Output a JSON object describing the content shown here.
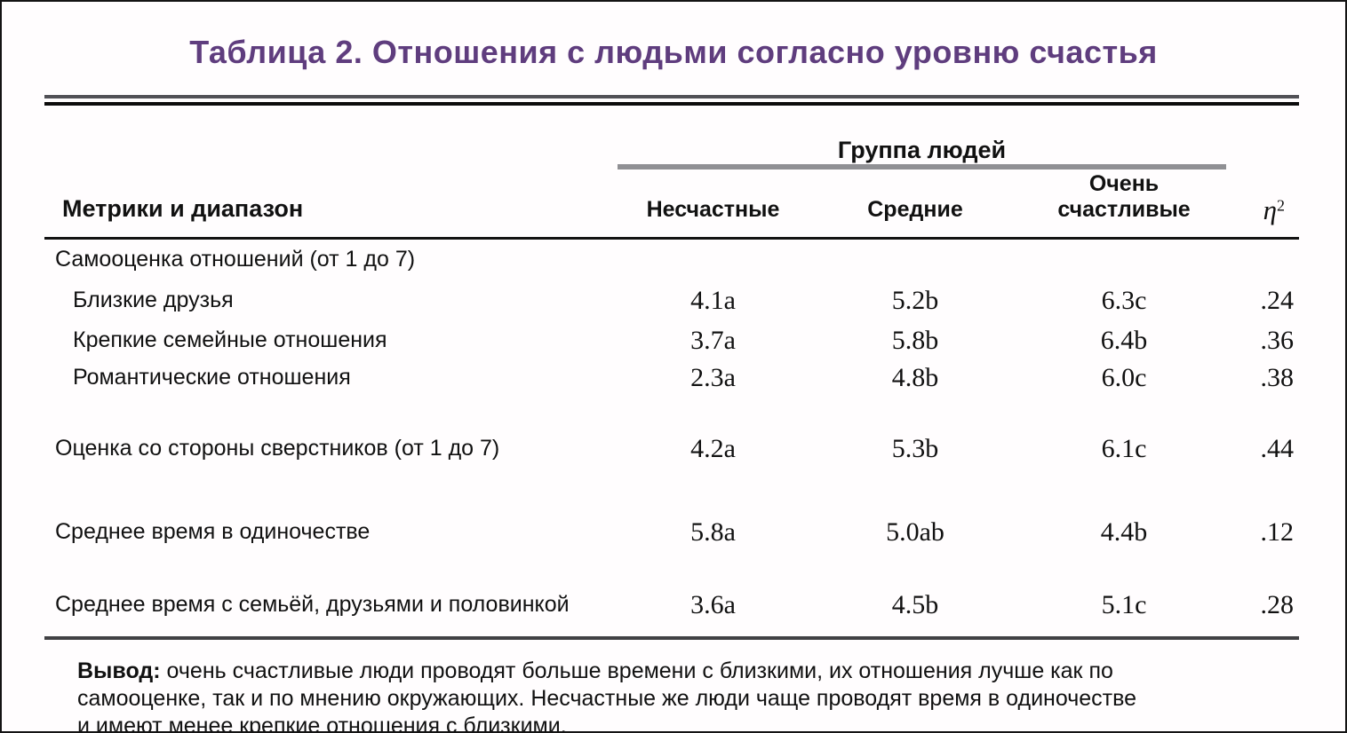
{
  "title": "Таблица 2. Отношения с людьми согласно уровню счастья",
  "table": {
    "group_header": "Группа людей",
    "metrics_header": "Метрики и диапазон",
    "columns": [
      "Несчастные",
      "Средние",
      "Очень счастливые"
    ],
    "eta_symbol": "η",
    "eta_superscript": "2",
    "rows": [
      {
        "label": "Самооценка отношений (от 1 до 7)"
      },
      {
        "label": "Близкие друзья",
        "values": [
          "4.1a",
          "5.2b",
          "6.3c",
          ".24"
        ]
      },
      {
        "label": "Крепкие семейные отношения",
        "values": [
          "3.7a",
          "5.8b",
          "6.4b",
          ".36"
        ]
      },
      {
        "label": "Романтические отношения",
        "values": [
          "2.3a",
          "4.8b",
          "6.0c",
          ".38"
        ]
      },
      {
        "label": "Оценка со стороны сверстников (от 1 до 7)",
        "values": [
          "4.2a",
          "5.3b",
          "6.1c",
          ".44"
        ]
      },
      {
        "label": "Среднее время в одиночестве",
        "values": [
          "5.8a",
          "5.0ab",
          "4.4b",
          ".12"
        ]
      },
      {
        "label": "Среднее время с семьёй, друзьями и половинкой",
        "values": [
          "3.6a",
          "4.5b",
          "5.1c",
          ".28"
        ]
      }
    ]
  },
  "footer": {
    "label": "Вывод:",
    "lines": [
      "очень счастливые люди проводят больше времени с близкими, их отношения лучше как по",
      "самооценке, так и по мнению окружающих. Несчастные же люди чаще проводят время в одиночестве",
      "и имеют менее крепкие отношения с близкими."
    ]
  },
  "colors": {
    "title_purple": "#5f3d7e",
    "rule_gray": "#909094",
    "rule_dark": "#0c0c0c"
  }
}
